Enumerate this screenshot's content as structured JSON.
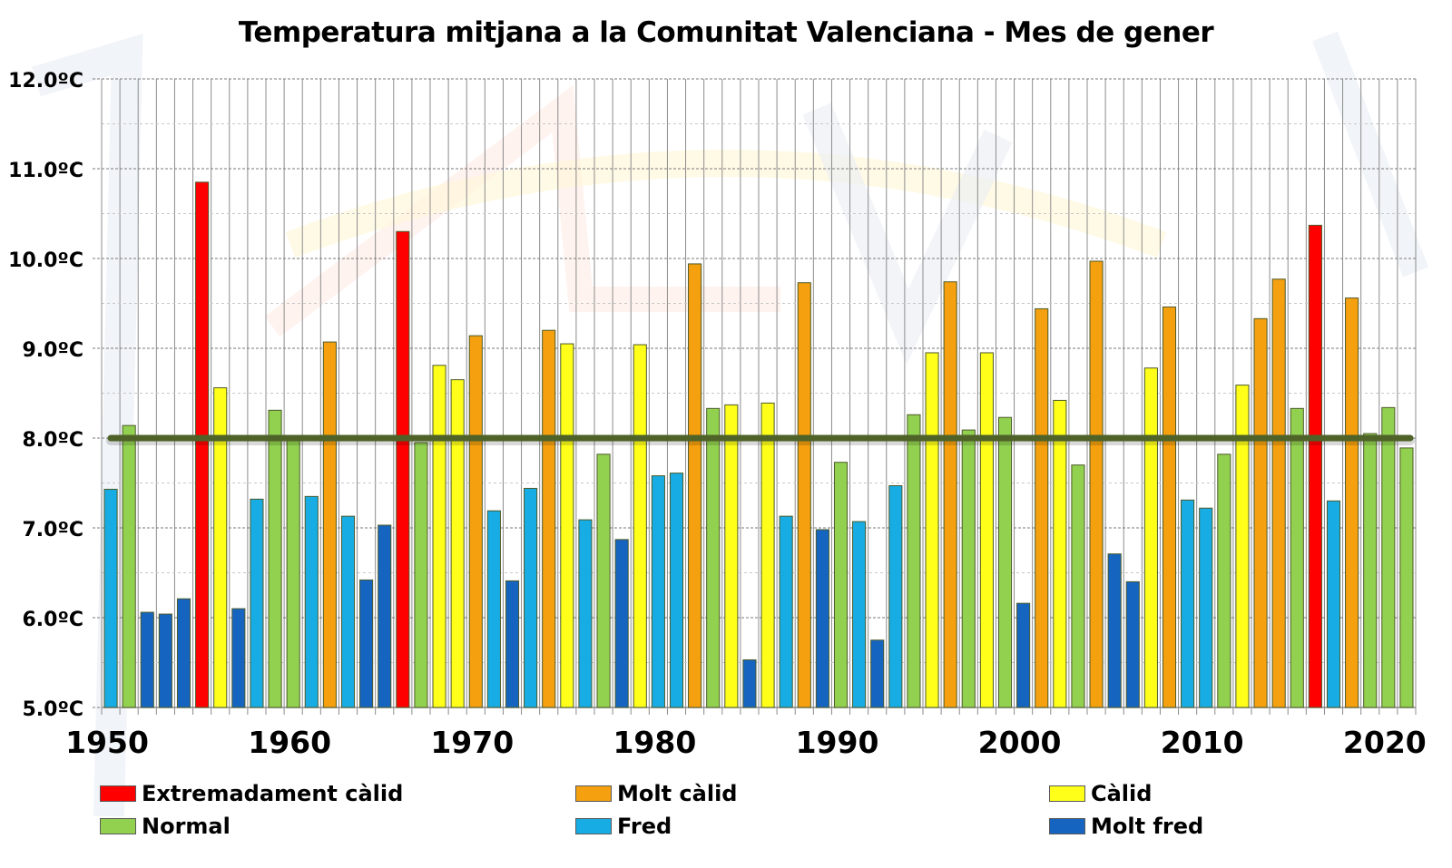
{
  "chart_data": {
    "type": "bar",
    "title": "Temperatura mitjana a la Comunitat Valenciana - Mes de gener",
    "xlabel": "",
    "ylabel": "",
    "ylim": [
      5.0,
      12.0
    ],
    "y_ticks": [
      "5.0ºC",
      "6.0ºC",
      "7.0ºC",
      "8.0ºC",
      "9.0ºC",
      "10.0ºC",
      "11.0ºC",
      "12.0ºC"
    ],
    "x_tick_labels": [
      "1950",
      "1960",
      "1970",
      "1980",
      "1990",
      "2000",
      "2010",
      "2020"
    ],
    "grid": true,
    "reference_line": {
      "value": 8.0,
      "color": "#4f6228"
    },
    "legend_position": "bottom",
    "categories_legend": [
      {
        "key": "EC",
        "label": "Extremadament càlid",
        "color": "#ff0000"
      },
      {
        "key": "MC",
        "label": "Molt càlid",
        "color": "#f5a00f"
      },
      {
        "key": "C",
        "label": "Càlid",
        "color": "#ffff1a"
      },
      {
        "key": "N",
        "label": "Normal",
        "color": "#92d050"
      },
      {
        "key": "F",
        "label": "Fred",
        "color": "#17ace3"
      },
      {
        "key": "MF",
        "label": "Molt fred",
        "color": "#1565c0"
      }
    ],
    "years": [
      1950,
      1951,
      1952,
      1953,
      1954,
      1955,
      1956,
      1957,
      1958,
      1959,
      1960,
      1961,
      1962,
      1963,
      1964,
      1965,
      1966,
      1967,
      1968,
      1969,
      1970,
      1971,
      1972,
      1973,
      1974,
      1975,
      1976,
      1977,
      1978,
      1979,
      1980,
      1981,
      1982,
      1983,
      1984,
      1985,
      1986,
      1987,
      1988,
      1989,
      1990,
      1991,
      1992,
      1993,
      1994,
      1995,
      1996,
      1997,
      1998,
      1999,
      2000,
      2001,
      2002,
      2003,
      2004,
      2005,
      2006,
      2007,
      2008,
      2009,
      2010,
      2011,
      2012,
      2013,
      2014,
      2015,
      2016,
      2017,
      2018,
      2019,
      2020,
      2021
    ],
    "values": [
      7.43,
      8.14,
      6.06,
      6.04,
      6.21,
      10.85,
      8.56,
      6.1,
      7.32,
      8.31,
      8.02,
      7.35,
      9.07,
      7.13,
      6.42,
      7.03,
      10.3,
      7.95,
      8.81,
      8.65,
      9.14,
      7.19,
      6.41,
      7.44,
      9.2,
      9.05,
      7.09,
      7.82,
      6.87,
      9.04,
      7.58,
      7.61,
      9.94,
      8.33,
      8.37,
      5.53,
      8.39,
      7.13,
      9.73,
      6.98,
      7.73,
      7.07,
      5.75,
      7.47,
      8.26,
      8.95,
      9.74,
      8.09,
      8.95,
      8.23,
      6.16,
      9.44,
      8.42,
      7.7,
      9.97,
      6.71,
      6.4,
      8.78,
      9.46,
      7.31,
      7.22,
      7.82,
      8.59,
      9.33,
      9.77,
      8.33,
      10.37,
      7.3,
      9.56,
      8.05,
      8.34,
      7.89
    ],
    "classes": [
      "F",
      "N",
      "MF",
      "MF",
      "MF",
      "EC",
      "C",
      "MF",
      "F",
      "N",
      "N",
      "F",
      "MC",
      "F",
      "MF",
      "MF",
      "EC",
      "N",
      "C",
      "C",
      "MC",
      "F",
      "MF",
      "F",
      "MC",
      "C",
      "F",
      "N",
      "MF",
      "C",
      "F",
      "F",
      "MC",
      "N",
      "C",
      "MF",
      "C",
      "F",
      "MC",
      "MF",
      "N",
      "F",
      "MF",
      "F",
      "N",
      "C",
      "MC",
      "N",
      "C",
      "N",
      "MF",
      "MC",
      "C",
      "N",
      "MC",
      "MF",
      "MF",
      "C",
      "MC",
      "F",
      "F",
      "N",
      "C",
      "MC",
      "MC",
      "N",
      "EC",
      "F",
      "MC",
      "N",
      "N",
      "N"
    ]
  }
}
